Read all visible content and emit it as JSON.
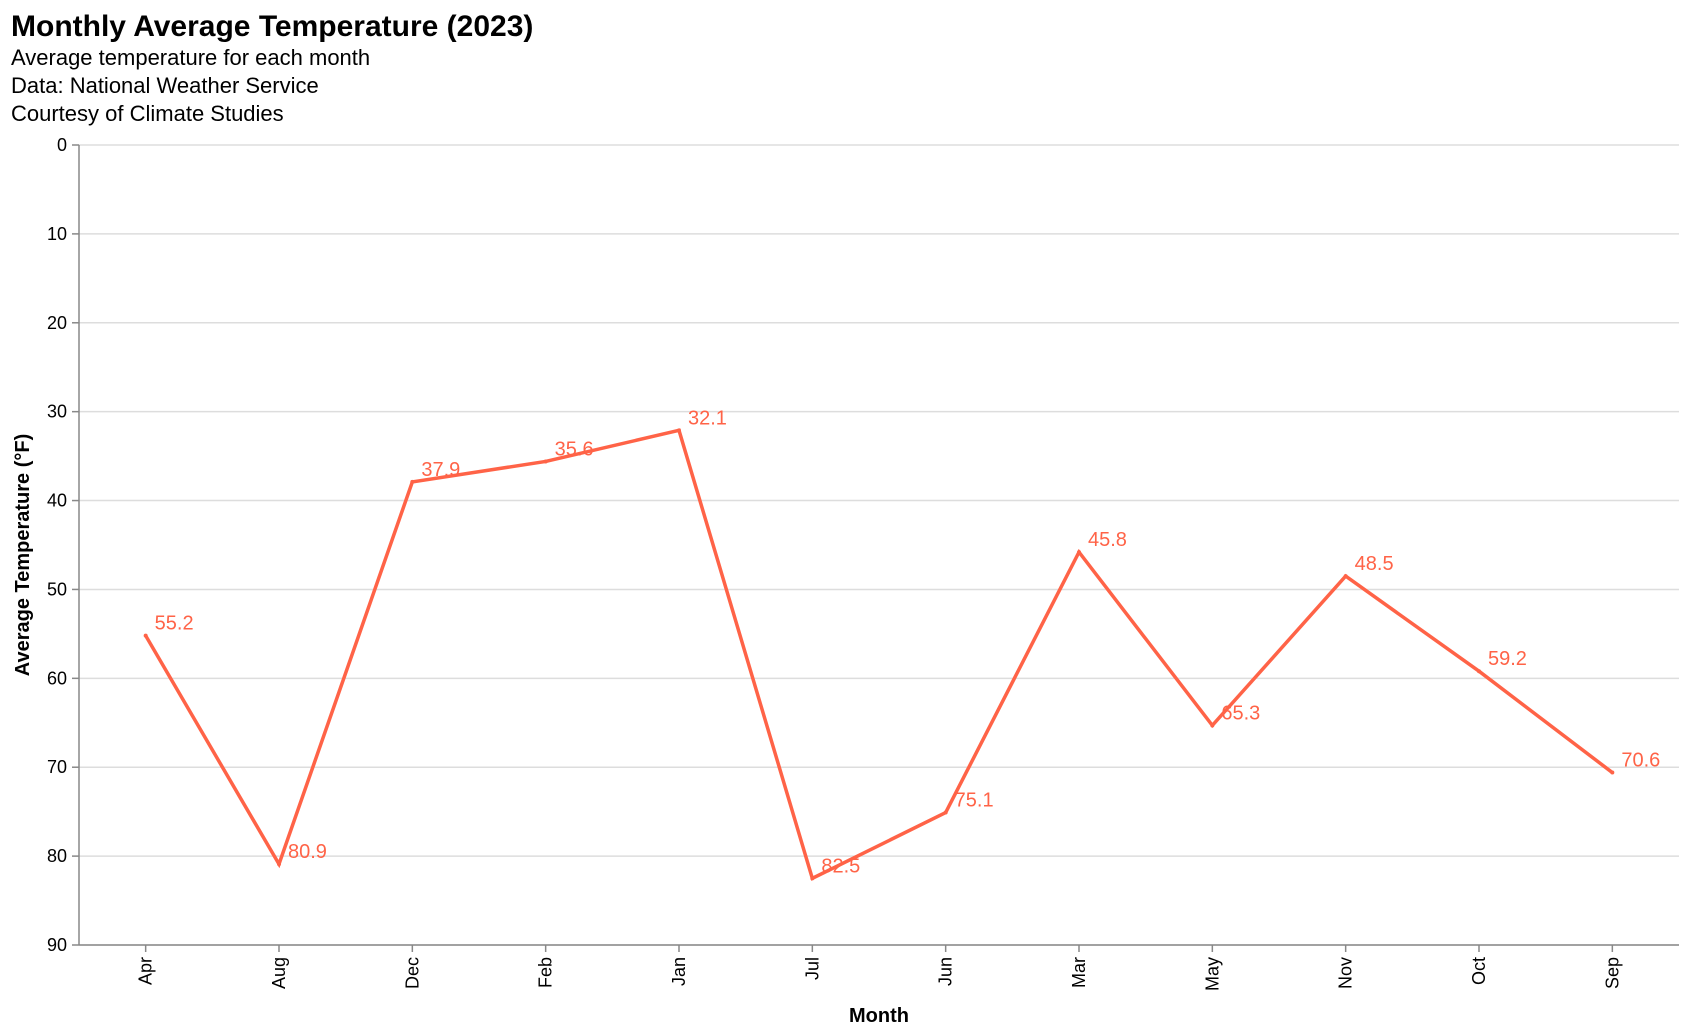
{
  "header": {
    "title": "Monthly Average Temperature (2023)",
    "subtitle_lines": [
      "Average temperature for each month",
      "Data: National Weather Service",
      "Courtesy of Climate Studies"
    ]
  },
  "colors": {
    "line": "#FF6347",
    "label": "#FF6347",
    "grid": "#dddddd",
    "axis": "#888888"
  },
  "chart_data": {
    "type": "line",
    "title": "Monthly Average Temperature (2023)",
    "subtitle": [
      "Average temperature for each month",
      "Data: National Weather Service",
      "Courtesy of Climate Studies"
    ],
    "xlabel": "Month",
    "ylabel": "Average Temperature (°F)",
    "categories": [
      "Apr",
      "Aug",
      "Dec",
      "Feb",
      "Jan",
      "Jul",
      "Jun",
      "Mar",
      "May",
      "Nov",
      "Oct",
      "Sep"
    ],
    "values": [
      55.2,
      80.9,
      37.9,
      35.6,
      32.1,
      82.5,
      75.1,
      45.8,
      65.3,
      48.5,
      59.2,
      70.6
    ],
    "value_labels": [
      "55.2",
      "80.9",
      "37.9",
      "35.6",
      "32.1",
      "82.5",
      "75.1",
      "45.8",
      "65.3",
      "48.5",
      "59.2",
      "70.6"
    ],
    "ylim": [
      0,
      90
    ],
    "y_reversed": true,
    "yticks": [
      0,
      10,
      20,
      30,
      40,
      50,
      60,
      70,
      80,
      90
    ],
    "grid": true,
    "legend": "none"
  }
}
